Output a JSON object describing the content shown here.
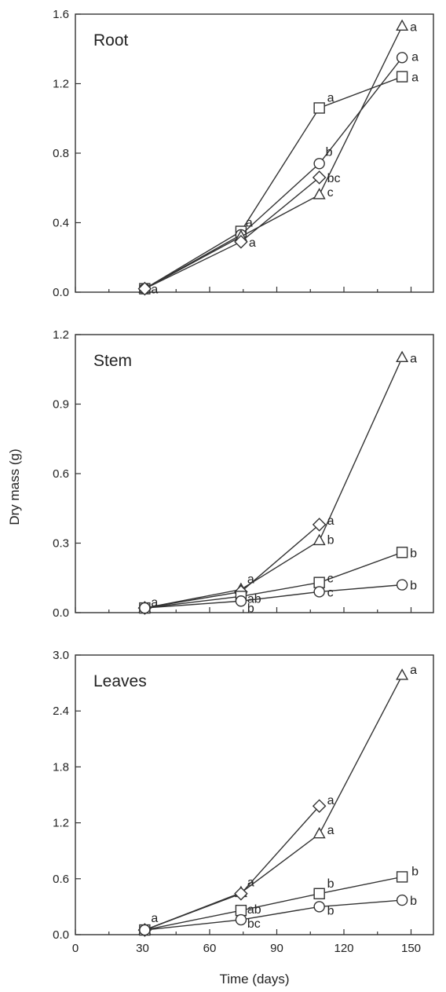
{
  "chart_data": {
    "type": "line",
    "shared_xlabel": "Time (days)",
    "shared_ylabel": "Dry mass (g)",
    "xlim": [
      0,
      160
    ],
    "xticks": [
      0,
      30,
      60,
      90,
      120,
      150
    ],
    "panels": [
      {
        "title": "Root",
        "ylim": [
          0,
          1.6
        ],
        "yticks": [
          "0.0",
          "0.4",
          "0.8",
          "1.2",
          "1.6"
        ],
        "series": [
          {
            "marker": "square",
            "points": [
              [
                31,
                0.02
              ],
              [
                74,
                0.35
              ],
              [
                109,
                1.06
              ],
              [
                146,
                1.24
              ]
            ],
            "labels": [
              "",
              "a",
              "a",
              "a"
            ]
          },
          {
            "marker": "circle",
            "points": [
              [
                31,
                0.02
              ],
              [
                74,
                0.33
              ],
              [
                109,
                0.74
              ],
              [
                146,
                1.35
              ]
            ],
            "labels": [
              "",
              "",
              "b",
              "a"
            ]
          },
          {
            "marker": "triangle",
            "points": [
              [
                31,
                0.02
              ],
              [
                74,
                0.32
              ],
              [
                109,
                0.56
              ],
              [
                146,
                1.53
              ]
            ],
            "labels": [
              "",
              "",
              "c",
              "a"
            ]
          },
          {
            "marker": "diamond",
            "points": [
              [
                31,
                0.02
              ],
              [
                74,
                0.29
              ],
              [
                109,
                0.66
              ]
            ],
            "labels": [
              "a",
              "a",
              "bc"
            ]
          }
        ]
      },
      {
        "title": "Stem",
        "ylim": [
          0,
          1.2
        ],
        "yticks": [
          "0.0",
          "0.3",
          "0.6",
          "0.9",
          "1.2"
        ],
        "series": [
          {
            "marker": "triangle",
            "points": [
              [
                31,
                0.02
              ],
              [
                74,
                0.1
              ],
              [
                109,
                0.31
              ],
              [
                146,
                1.1
              ]
            ],
            "labels": [
              "",
              "a",
              "b",
              "a"
            ]
          },
          {
            "marker": "diamond",
            "points": [
              [
                31,
                0.02
              ],
              [
                74,
                0.09
              ],
              [
                109,
                0.38
              ]
            ],
            "labels": [
              "a",
              "",
              "a"
            ]
          },
          {
            "marker": "square",
            "points": [
              [
                31,
                0.02
              ],
              [
                74,
                0.07
              ],
              [
                109,
                0.13
              ],
              [
                146,
                0.26
              ]
            ],
            "labels": [
              "",
              "ab",
              "c",
              "b"
            ]
          },
          {
            "marker": "circle",
            "points": [
              [
                31,
                0.02
              ],
              [
                74,
                0.05
              ],
              [
                109,
                0.09
              ],
              [
                146,
                0.12
              ]
            ],
            "labels": [
              "",
              "b",
              "c",
              "b"
            ]
          }
        ]
      },
      {
        "title": "Leaves",
        "ylim": [
          0,
          3.0
        ],
        "yticks": [
          "0.0",
          "0.6",
          "1.2",
          "1.8",
          "2.4",
          "3.0"
        ],
        "series": [
          {
            "marker": "triangle",
            "points": [
              [
                31,
                0.05
              ],
              [
                74,
                0.45
              ],
              [
                109,
                1.08
              ],
              [
                146,
                2.78
              ]
            ],
            "labels": [
              "",
              "a",
              "a",
              "a"
            ]
          },
          {
            "marker": "diamond",
            "points": [
              [
                31,
                0.05
              ],
              [
                74,
                0.44
              ],
              [
                109,
                1.38
              ]
            ],
            "labels": [
              "a",
              "",
              "a"
            ]
          },
          {
            "marker": "square",
            "points": [
              [
                31,
                0.05
              ],
              [
                74,
                0.26
              ],
              [
                109,
                0.44
              ],
              [
                146,
                0.62
              ]
            ],
            "labels": [
              "",
              "ab",
              "b",
              "b"
            ]
          },
          {
            "marker": "circle",
            "points": [
              [
                31,
                0.05
              ],
              [
                74,
                0.16
              ],
              [
                109,
                0.3
              ],
              [
                146,
                0.37
              ]
            ],
            "labels": [
              "",
              "bc",
              "b",
              "b"
            ]
          }
        ]
      }
    ]
  }
}
